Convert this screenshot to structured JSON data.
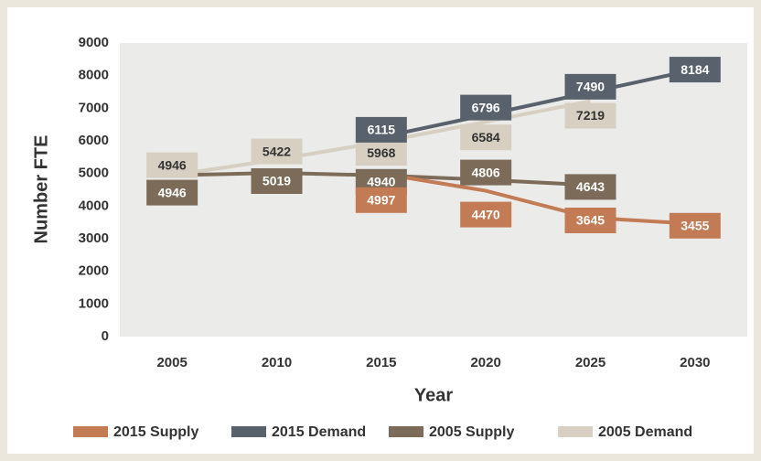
{
  "chart_data": {
    "type": "line",
    "categories": [
      "2005",
      "2010",
      "2015",
      "2020",
      "2025",
      "2030"
    ],
    "x_label": "Year",
    "y_label": "Number FTE",
    "ylim": [
      0,
      9000
    ],
    "yticks": [
      0,
      1000,
      2000,
      3000,
      4000,
      5000,
      6000,
      7000,
      8000,
      9000
    ],
    "grid": false,
    "legend": "bottom",
    "series": [
      {
        "name": "2015 Supply",
        "color": "#c27b55",
        "values": [
          null,
          null,
          4997,
          4470,
          3645,
          3455
        ]
      },
      {
        "name": "2015 Demand",
        "color": "#58616c",
        "values": [
          null,
          null,
          6115,
          6796,
          7490,
          8184
        ]
      },
      {
        "name": "2005 Supply",
        "color": "#7b6b58",
        "values": [
          4946,
          5019,
          4940,
          4806,
          4643,
          null
        ]
      },
      {
        "name": "2005 Demand",
        "color": "#d7d0c2",
        "values": [
          4946,
          5422,
          5968,
          6584,
          7219,
          null
        ]
      }
    ]
  }
}
